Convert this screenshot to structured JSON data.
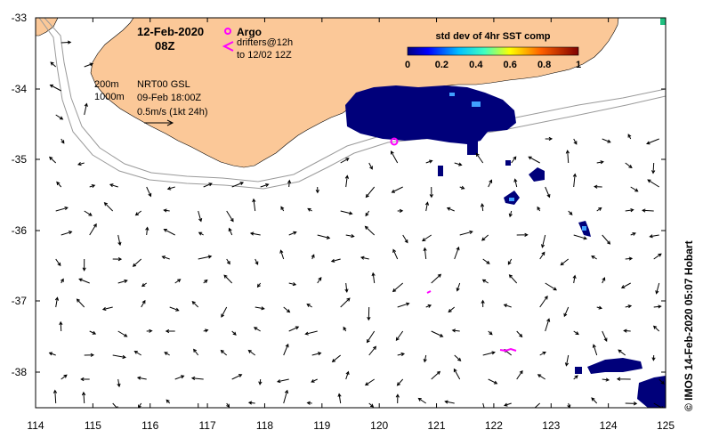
{
  "map": {
    "date": "12-Feb-2020",
    "time": "08Z",
    "legend": {
      "argo_label": "Argo",
      "drifters_line1": "drifters@12h",
      "drifters_line2": "to 12/02 12Z",
      "marker_color": "#ff00ff"
    },
    "info": {
      "contour_200": "200m",
      "contour_1000": "1000m",
      "product": "NRT00 GSL",
      "product_date": "09-Feb 18:00Z",
      "scale_label": "0.5m/s (1kt 24h)"
    },
    "colorbar": {
      "title": "std dev of 4hr SST comp",
      "ticks": [
        "0",
        "0.2",
        "0.4",
        "0.6",
        "0.8",
        "1"
      ]
    },
    "credit": "©  IMOS 14-Feb-2020 05:07 Hobart",
    "axes": {
      "x_ticks": [
        "114",
        "115",
        "116",
        "117",
        "118",
        "119",
        "120",
        "121",
        "122",
        "123",
        "124",
        "125"
      ],
      "y_ticks": [
        "-33",
        "-34",
        "-35",
        "-36",
        "-37",
        "-38"
      ],
      "x_range": [
        114,
        125
      ],
      "y_range": [
        -38.5,
        -33
      ]
    },
    "colors": {
      "land": "#fbc898",
      "sst_patch": "#00007a",
      "contour": "#9a9a9a"
    }
  }
}
